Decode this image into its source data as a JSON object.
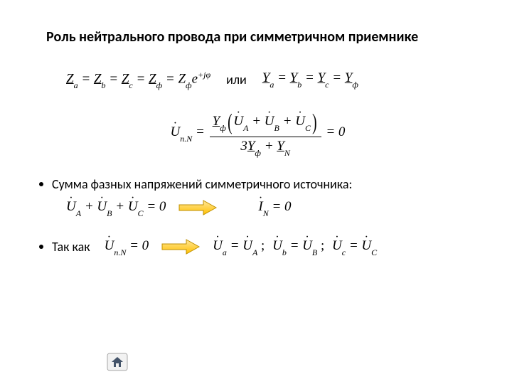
{
  "title": "Роль нейтрального провода при симметричном приемнике",
  "line1": {
    "eq_left_html": "<span class='underline'>Z</span><span class='sub'>a</span> = <span class='underline'>Z</span><span class='sub'>b</span> = <span class='underline'>Z</span><span class='sub'>c</span> = <span class='underline'>Z</span><span class='sub'>ф</span> = Z<span class='sub'>ф</span>e<span class='sup'>+jφ</span>",
    "sep": "или",
    "eq_right_html": "<span class='underline'>Y</span><span class='sub'>a</span> = <span class='underline'>Y</span><span class='sub'>b</span> = <span class='underline'>Y</span><span class='sub'>c</span> = <span class='underline'>Y</span><span class='sub'>ф</span>"
  },
  "line2": {
    "lhs_html": "<span class='dot-over'>U</span><span class='sub'>n.N</span> =",
    "num_html": "<span class='underline'>Y</span><span class='sub'>ф</span><span class='bigparen'>(</span><span class='dot-over'>U</span><span class='sub'>A</span> + <span class='dot-over'>U</span><span class='sub'>B</span> + <span class='dot-over'>U</span><span class='sub'>C</span><span class='bigparen'>)</span>",
    "den_html": "3<span class='underline'>Y</span><span class='sub'>ф</span> + <span class='underline'>Y</span><span class='sub'>N</span>",
    "rhs": "= 0"
  },
  "bullet1": "Сумма фазных напряжений симметричного источника:",
  "line3": {
    "left_html": "<span class='dot-over'>U</span><span class='sub'>A</span> + <span class='dot-over'>U</span><span class='sub'>B</span> + <span class='dot-over'>U</span><span class='sub'>C</span> = 0",
    "right_html": "<span class='dot-over'>I</span><span class='sub'>N</span> = 0"
  },
  "bullet2": "Так как",
  "line4": {
    "cond_html": "<span class='dot-over'>U</span><span class='sub'>n.N</span> = 0",
    "result_html": "<span class='dot-over'>U</span><span class='sub'>a</span> = <span class='dot-over'>U</span><span class='sub'>A</span> <span class='rm'>;</span><span class='gap'></span> <span class='dot-over'>U</span><span class='sub'>b</span> = <span class='dot-over'>U</span><span class='sub'>B</span> <span class='rm'>;</span><span class='gap'></span> <span class='dot-over'>U</span><span class='sub'>c</span> = <span class='dot-over'>U</span><span class='sub'>C</span>"
  },
  "colors": {
    "arrow_fill": "#ffc000",
    "arrow_stroke": "#bf9000",
    "home_fill": "#d0cece",
    "home_stroke": "#7f7f7f",
    "home_inner": "#44546a"
  }
}
